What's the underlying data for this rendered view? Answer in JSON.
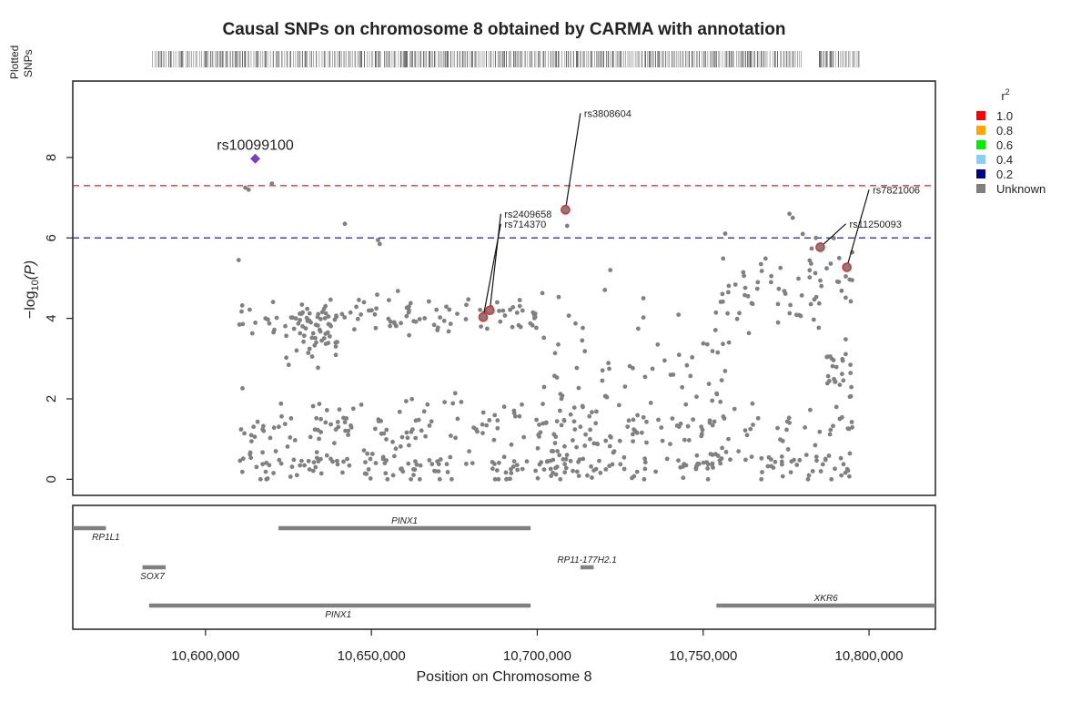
{
  "chart_data": {
    "type": "scatter",
    "title": "Causal SNPs on chromosome 8 obtained by CARMA with annotation",
    "xlabel": "Position on Chromosome 8",
    "ylabel_prefix": "−log",
    "ylabel_sub": "10",
    "ylabel_suffix": "(P)",
    "xlim": [
      10560000,
      10820000
    ],
    "ylim": [
      -0.4,
      9.9
    ],
    "x_ticks": [
      {
        "value": 10600000,
        "label": "10,600,000"
      },
      {
        "value": 10650000,
        "label": "10,650,000"
      },
      {
        "value": 10700000,
        "label": "10,700,000"
      },
      {
        "value": 10750000,
        "label": "10,750,000"
      },
      {
        "value": 10800000,
        "label": "10,800,000"
      }
    ],
    "y_ticks": [
      {
        "value": 0,
        "label": "0"
      },
      {
        "value": 2,
        "label": "2"
      },
      {
        "value": 4,
        "label": "4"
      },
      {
        "value": 6,
        "label": "6"
      },
      {
        "value": 8,
        "label": "8"
      }
    ],
    "thresholds": [
      {
        "y": 7.3,
        "color": "#e03030"
      },
      {
        "y": 6.0,
        "color": "#2a2ae0"
      }
    ],
    "rug_label": [
      "Plotted",
      "SNPs"
    ],
    "rug_ranges": [
      [
        10584000,
        10653000
      ],
      [
        10654000,
        10780000
      ],
      [
        10785000,
        10797000
      ]
    ],
    "point_color": "#808080",
    "lead_snp": {
      "label": "rs10099100",
      "x": 10615000,
      "y": 7.97,
      "color": "#7b3fc4"
    },
    "causal_snps": [
      {
        "label": "rs3808604",
        "x": 10708500,
        "y": 6.7,
        "label_x": 10713000,
        "label_y": 9.1
      },
      {
        "label": "rs2409658",
        "x": 10685700,
        "y": 4.2,
        "label_x": 10689000,
        "label_y": 6.6
      },
      {
        "label": "rs714370",
        "x": 10683700,
        "y": 4.03,
        "label_x": 10689000,
        "label_y": 6.35
      },
      {
        "label": "rs7821006",
        "x": 10793300,
        "y": 5.27,
        "label_x": 10800000,
        "label_y": 7.2
      },
      {
        "label": "rs11250093",
        "x": 10785300,
        "y": 5.77,
        "label_x": 10793000,
        "label_y": 6.35
      }
    ],
    "causal_color": "#e03030",
    "legend": {
      "title": "r",
      "title_sup": "2",
      "items": [
        {
          "label": "1.0",
          "color": "#ff0000"
        },
        {
          "label": "0.8",
          "color": "#ffa500"
        },
        {
          "label": "0.6",
          "color": "#00ee00"
        },
        {
          "label": "0.4",
          "color": "#87cefa"
        },
        {
          "label": "0.2",
          "color": "#000080"
        },
        {
          "label": "Unknown",
          "color": "#7f7f7f"
        }
      ]
    },
    "genes": [
      {
        "name": "RP1L1",
        "start": 10560000,
        "end": 10570000,
        "row": 0,
        "label_x": 10570000,
        "label_row": "below"
      },
      {
        "name": "PINX1",
        "start": 10622000,
        "end": 10698000,
        "row": 0,
        "label_x": 10660000,
        "label_row": "above"
      },
      {
        "name": "SOX7",
        "start": 10581000,
        "end": 10588000,
        "row": 1,
        "label_x": 10584000,
        "label_row": "below"
      },
      {
        "name": "RP11-177H2.1",
        "start": 10713000,
        "end": 10717000,
        "row": 1,
        "label_x": 10715000,
        "label_row": "above"
      },
      {
        "name": "PINX1",
        "start": 10583000,
        "end": 10698000,
        "row": 2,
        "label_x": 10640000,
        "label_row": "below"
      },
      {
        "name": "XKR6",
        "start": 10754000,
        "end": 10820000,
        "row": 2,
        "label_x": 10787000,
        "label_row": "above"
      }
    ],
    "gene_color": "#808080"
  }
}
